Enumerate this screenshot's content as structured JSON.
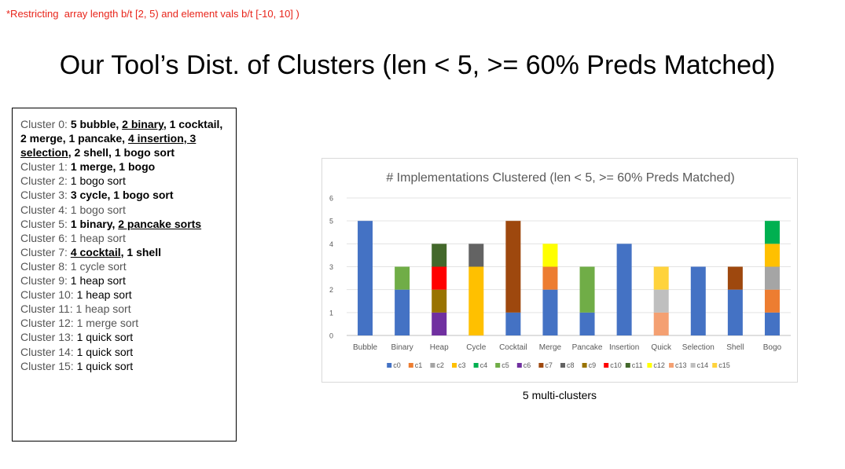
{
  "note": "*Restricting  array length b/t [2, 5) and element vals b/t [-10, 10] )",
  "title": "Our Tool’s Dist. of Clusters (len < 5, >= 60% Preds Matched)",
  "clusters": [
    {
      "label": "Cluster 0:",
      "parts": [
        {
          "text": " "
        },
        {
          "text": "5 bubble",
          "bold": true
        },
        {
          "text": ", ",
          "bold": true
        },
        {
          "text": "2 binary",
          "bold": true,
          "underline": true
        },
        {
          "text": ", 1 cocktail, 2 merge, 1 pancake, ",
          "bold": true
        },
        {
          "text": "4 insertion, 3 selection",
          "bold": true,
          "underline": true
        },
        {
          "text": ", 2 shell, 1 bogo sort",
          "bold": true
        }
      ]
    },
    {
      "label": "Cluster 1:",
      "parts": [
        {
          "text": " "
        },
        {
          "text": "1 merge, 1 bogo",
          "bold": true
        }
      ]
    },
    {
      "label": "Cluster 2:",
      "parts": [
        {
          "text": " 1 bogo sort"
        }
      ]
    },
    {
      "label": "Cluster 3:",
      "parts": [
        {
          "text": " "
        },
        {
          "text": "3 cycle, 1 bogo sort",
          "bold": true
        }
      ]
    },
    {
      "label": "Cluster 4:",
      "parts": [
        {
          "text": " 1 bogo sort",
          "grey": true
        }
      ]
    },
    {
      "label": "Cluster 5:",
      "parts": [
        {
          "text": " "
        },
        {
          "text": "1 binary, ",
          "bold": true
        },
        {
          "text": "2 pancake sorts",
          "bold": true,
          "underline": true
        }
      ]
    },
    {
      "label": "Cluster 6:",
      "parts": [
        {
          "text": " 1 heap sort",
          "grey": true
        }
      ]
    },
    {
      "label": "Cluster 7:",
      "parts": [
        {
          "text": " "
        },
        {
          "text": "4 cocktail",
          "bold": true,
          "underline": true
        },
        {
          "text": ", 1 shell",
          "bold": true
        }
      ]
    },
    {
      "label": "Cluster 8:",
      "parts": [
        {
          "text": " 1 cycle sort",
          "grey": true
        }
      ]
    },
    {
      "label": "Cluster 9:",
      "parts": [
        {
          "text": " 1 heap sort"
        }
      ]
    },
    {
      "label": "Cluster 10:",
      "parts": [
        {
          "text": " 1 heap sort"
        }
      ]
    },
    {
      "label": "Cluster 11:",
      "parts": [
        {
          "text": " 1 heap sort",
          "grey": true
        }
      ]
    },
    {
      "label": "Cluster 12:",
      "parts": [
        {
          "text": " 1 merge sort",
          "grey": true
        }
      ]
    },
    {
      "label": "Cluster 13:",
      "parts": [
        {
          "text": " 1 quick sort"
        }
      ]
    },
    {
      "label": "Cluster 14:",
      "parts": [
        {
          "text": " 1 quick sort"
        }
      ]
    },
    {
      "label": "Cluster 15:",
      "parts": [
        {
          "text": " 1 quick sort"
        }
      ]
    }
  ],
  "caption": "5 multi-clusters",
  "chart_data": {
    "type": "bar",
    "stacked": true,
    "title": "# Implementations Clustered (len < 5, >= 60% Preds Matched)",
    "xlabel": "",
    "ylabel": "",
    "ylim": [
      0,
      6
    ],
    "yticks": [
      0,
      1,
      2,
      3,
      4,
      5,
      6
    ],
    "grid": true,
    "legend_position": "bottom",
    "categories": [
      "Bubble",
      "Binary",
      "Heap",
      "Cycle",
      "Cocktail",
      "Merge",
      "Pancake",
      "Insertion",
      "Quick",
      "Selection",
      "Shell",
      "Bogo"
    ],
    "series": [
      {
        "name": "c0",
        "color": "#4472c4",
        "values": [
          5,
          2,
          0,
          0,
          1,
          2,
          1,
          4,
          0,
          3,
          2,
          1
        ]
      },
      {
        "name": "c1",
        "color": "#ed7d31",
        "values": [
          0,
          0,
          0,
          0,
          0,
          1,
          0,
          0,
          0,
          0,
          0,
          1
        ]
      },
      {
        "name": "c2",
        "color": "#a5a5a5",
        "values": [
          0,
          0,
          0,
          0,
          0,
          0,
          0,
          0,
          0,
          0,
          0,
          1
        ]
      },
      {
        "name": "c3",
        "color": "#ffc000",
        "values": [
          0,
          0,
          0,
          3,
          0,
          0,
          0,
          0,
          0,
          0,
          0,
          1
        ]
      },
      {
        "name": "c4",
        "color": "#00b050",
        "values": [
          0,
          0,
          0,
          0,
          0,
          0,
          0,
          0,
          0,
          0,
          0,
          1
        ]
      },
      {
        "name": "c5",
        "color": "#70ad47",
        "values": [
          0,
          1,
          0,
          0,
          0,
          0,
          2,
          0,
          0,
          0,
          0,
          0
        ]
      },
      {
        "name": "c6",
        "color": "#7030a0",
        "values": [
          0,
          0,
          1,
          0,
          0,
          0,
          0,
          0,
          0,
          0,
          0,
          0
        ]
      },
      {
        "name": "c7",
        "color": "#9e480e",
        "values": [
          0,
          0,
          0,
          0,
          4,
          0,
          0,
          0,
          0,
          0,
          1,
          0
        ]
      },
      {
        "name": "c8",
        "color": "#636363",
        "values": [
          0,
          0,
          0,
          1,
          0,
          0,
          0,
          0,
          0,
          0,
          0,
          0
        ]
      },
      {
        "name": "c9",
        "color": "#997300",
        "values": [
          0,
          0,
          1,
          0,
          0,
          0,
          0,
          0,
          0,
          0,
          0,
          0
        ]
      },
      {
        "name": "c10",
        "color": "#ff0000",
        "values": [
          0,
          0,
          1,
          0,
          0,
          0,
          0,
          0,
          0,
          0,
          0,
          0
        ]
      },
      {
        "name": "c11",
        "color": "#43682b",
        "values": [
          0,
          0,
          1,
          0,
          0,
          0,
          0,
          0,
          0,
          0,
          0,
          0
        ]
      },
      {
        "name": "c12",
        "color": "#ffff00",
        "values": [
          0,
          0,
          0,
          0,
          0,
          1,
          0,
          0,
          0,
          0,
          0,
          0
        ]
      },
      {
        "name": "c13",
        "color": "#f4a072",
        "values": [
          0,
          0,
          0,
          0,
          0,
          0,
          0,
          0,
          1,
          0,
          0,
          0
        ]
      },
      {
        "name": "c14",
        "color": "#bfbfbf",
        "values": [
          0,
          0,
          0,
          0,
          0,
          0,
          0,
          0,
          1,
          0,
          0,
          0
        ]
      },
      {
        "name": "c15",
        "color": "#ffd33c",
        "values": [
          0,
          0,
          0,
          0,
          0,
          0,
          0,
          0,
          1,
          0,
          0,
          0
        ]
      }
    ]
  }
}
